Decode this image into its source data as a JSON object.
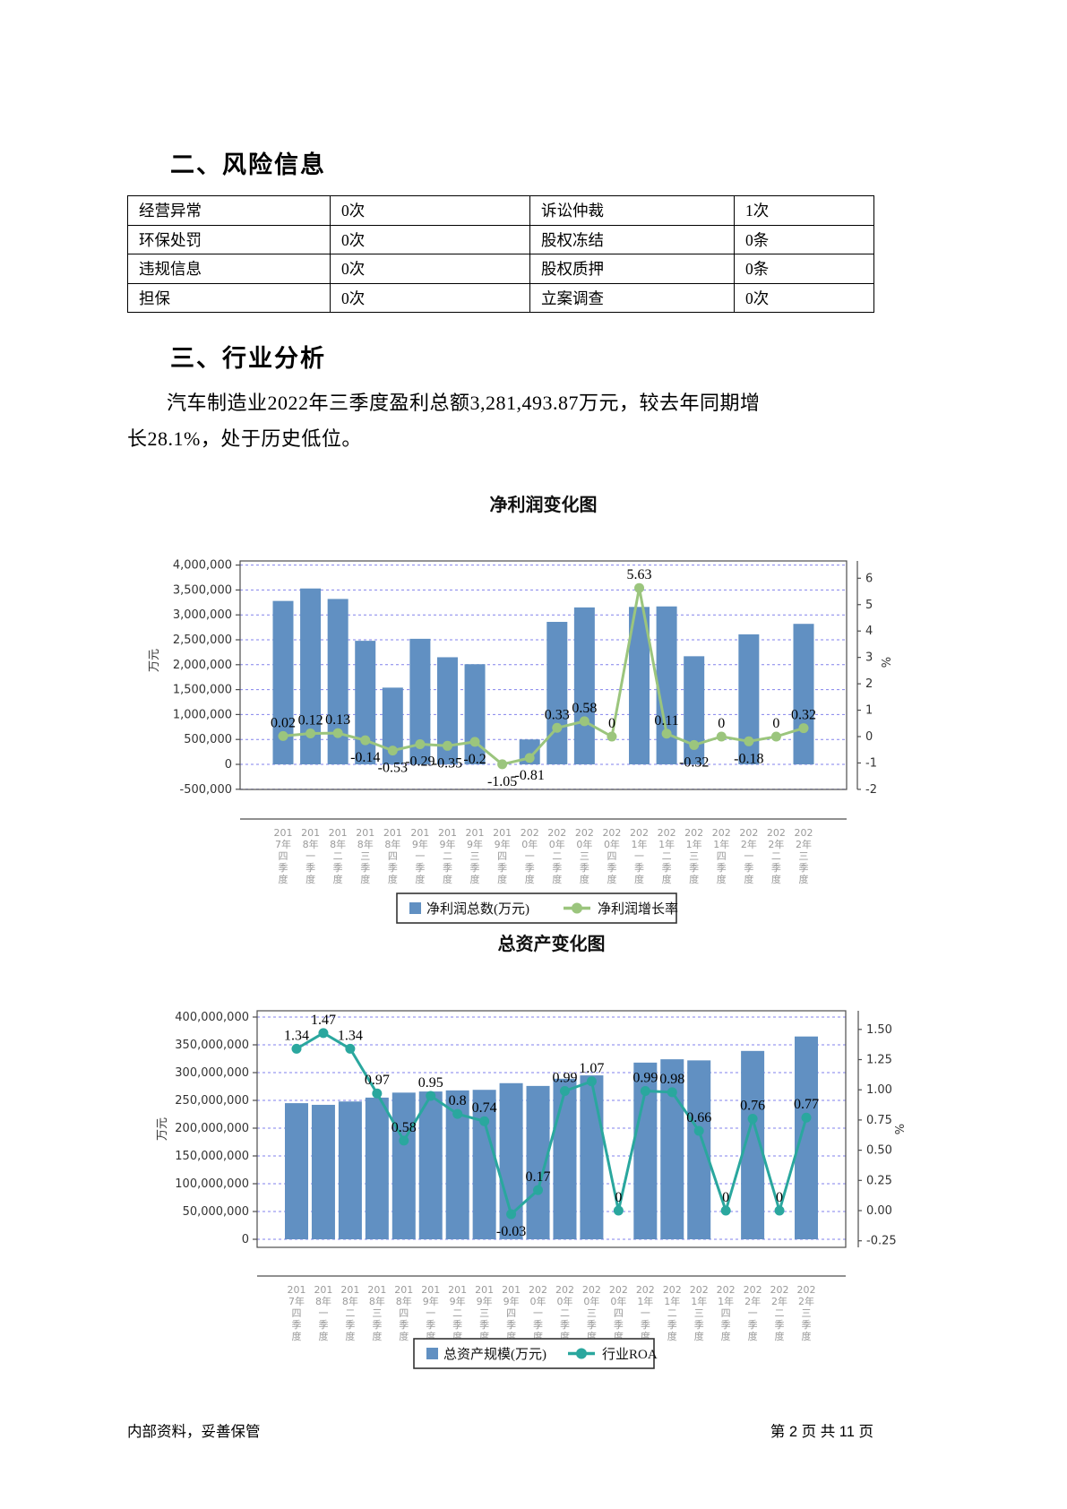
{
  "page": {
    "footer_left": "内部资料，妥善保管",
    "footer_right": "第 2 页  共 11 页"
  },
  "sections": {
    "risk": {
      "heading": "二、风险信息"
    },
    "industry": {
      "heading": "三、行业分析",
      "lines": [
        "汽车制造业2022年三季度盈利总额3,281,493.87万元，较去年同期增",
        "长28.1%，处于历史低位。"
      ]
    }
  },
  "risk_table": {
    "rows": [
      [
        "经营异常",
        "0次",
        "诉讼仲裁",
        "1次"
      ],
      [
        "环保处罚",
        "0次",
        "股权冻结",
        "0条"
      ],
      [
        "违规信息",
        "0次",
        "股权质押",
        "0条"
      ],
      [
        "担保",
        "0次",
        "立案调查",
        "0次"
      ]
    ]
  },
  "chart_data": [
    {
      "type": "bar+line",
      "title": "净利润变化图",
      "categories": [
        "2017年四季度",
        "2018年一季度",
        "2018年二季度",
        "2018年三季度",
        "2018年四季度",
        "2019年一季度",
        "2019年二季度",
        "2019年三季度",
        "2019年四季度",
        "2020年一季度",
        "2020年二季度",
        "2020年三季度",
        "2020年四季度",
        "2021年一季度",
        "2021年二季度",
        "2021年三季度",
        "2021年四季度",
        "2022年一季度",
        "2022年二季度",
        "2022年三季度"
      ],
      "series": [
        {
          "name": "净利润总数(万元)",
          "type": "bar",
          "axis": "left",
          "color": "#6190C2",
          "values": [
            3280000,
            3530000,
            3320000,
            2480000,
            1540000,
            2520000,
            2150000,
            2010000,
            0,
            500000,
            2860000,
            3150000,
            0,
            3160000,
            3170000,
            2170000,
            0,
            2610000,
            0,
            2820000
          ]
        },
        {
          "name": "净利润增长率",
          "type": "line",
          "axis": "right",
          "color": "#9BC57D",
          "values": [
            0.02,
            0.12,
            0.13,
            -0.14,
            -0.53,
            -0.29,
            -0.35,
            -0.2,
            -1.05,
            -0.81,
            0.33,
            0.58,
            0,
            5.63,
            0.11,
            -0.32,
            0,
            -0.18,
            0,
            0.32
          ]
        }
      ],
      "left_axis": {
        "label": "万元",
        "min": -500000,
        "max": 4000000,
        "step": 500000
      },
      "right_axis": {
        "label": "%",
        "min": -2,
        "max": 6,
        "step": 1,
        "decimals": 0
      },
      "grid": "dashed-horizontal",
      "legend_position": "bottom"
    },
    {
      "type": "bar+line",
      "title": "总资产变化图",
      "categories": [
        "2017年四季度",
        "2018年一季度",
        "2018年二季度",
        "2018年三季度",
        "2018年四季度",
        "2019年一季度",
        "2019年二季度",
        "2019年三季度",
        "2019年四季度",
        "2020年一季度",
        "2020年二季度",
        "2020年三季度",
        "2020年四季度",
        "2021年一季度",
        "2021年二季度",
        "2021年三季度",
        "2021年四季度",
        "2022年一季度",
        "2022年二季度",
        "2022年三季度"
      ],
      "series": [
        {
          "name": "总资产规模(万元)",
          "type": "bar",
          "axis": "left",
          "color": "#6190C2",
          "values": [
            245000000,
            242000000,
            248000000,
            255000000,
            264000000,
            266000000,
            268000000,
            269000000,
            281000000,
            276000000,
            289000000,
            295000000,
            0,
            318000000,
            324000000,
            322000000,
            0,
            339000000,
            0,
            365000000
          ]
        },
        {
          "name": "行业ROA",
          "type": "line",
          "axis": "right",
          "color": "#2AA79E",
          "values": [
            1.34,
            1.47,
            1.34,
            0.97,
            0.58,
            0.95,
            0.8,
            0.74,
            -0.03,
            0.17,
            0.99,
            1.07,
            0,
            0.99,
            0.98,
            0.66,
            0,
            0.76,
            0,
            0.77
          ]
        }
      ],
      "left_axis": {
        "label": "万元",
        "min": 0,
        "max": 400000000,
        "step": 50000000
      },
      "right_axis": {
        "label": "%",
        "min": -0.25,
        "max": 1.5,
        "step": 0.25,
        "decimals": 2
      },
      "grid": "dashed-horizontal",
      "legend_position": "bottom"
    }
  ]
}
